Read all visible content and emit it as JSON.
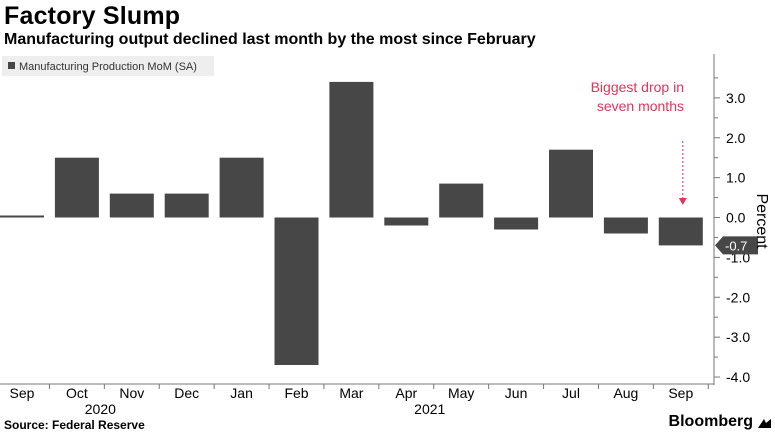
{
  "title": "Factory Slump",
  "subtitle": "Manufacturing output declined last month by the most since February",
  "source": "Source: Federal Reserve",
  "brand": "Bloomberg",
  "colors": {
    "bar": "#474747",
    "annotation": "#e8315b",
    "axis": "#777777"
  },
  "chart_data": {
    "type": "bar",
    "categories": [
      "Sep",
      "Oct",
      "Nov",
      "Dec",
      "Jan",
      "Feb",
      "Mar",
      "Apr",
      "May",
      "Jun",
      "Jul",
      "Aug",
      "Sep"
    ],
    "year_labels": [
      {
        "label": "2020",
        "category_index": 1.5
      },
      {
        "label": "2021",
        "category_index": 7.5
      }
    ],
    "series": [
      {
        "name": "Manufacturing Production MoM (SA)",
        "values": [
          0.05,
          1.5,
          0.6,
          0.6,
          1.5,
          -3.7,
          3.4,
          -0.2,
          0.85,
          -0.3,
          1.7,
          -0.4,
          -0.7
        ]
      }
    ],
    "ylabel": "Percent",
    "ylim": [
      -4.2,
      4.0
    ],
    "yticks": [
      -4.0,
      -3.0,
      -2.0,
      -1.0,
      0.0,
      1.0,
      2.0,
      3.0
    ],
    "ytick_labels": [
      "-4.0",
      "-3.0",
      "-2.0",
      "-1.0",
      "0.0",
      "1.0",
      "2.0",
      "3.0"
    ],
    "y_axis_side": "right",
    "legend_position": "top-left",
    "last_value_label": "-0.7",
    "annotation": {
      "lines": [
        "Biggest drop in",
        "seven months"
      ],
      "category_index": 12
    }
  }
}
